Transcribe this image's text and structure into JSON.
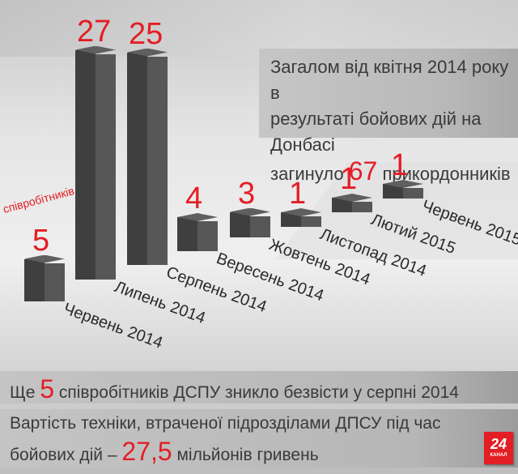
{
  "summary": {
    "line1": "Загалом від квітня 2014 року в",
    "line2": "результаті бойових дій на Донбасі",
    "line3_prefix": "загинуло",
    "line3_number": "67",
    "line3_suffix": "прикордонників"
  },
  "first_bar_unit": "співробітників",
  "missing": {
    "prefix": "Ще",
    "number": "5",
    "suffix": "співробітників ДСПУ зникло безвісти у серпні 2014"
  },
  "equipment": {
    "line1": "Вартість техніки, втраченої підрозділами ДПСУ під час",
    "line2_prefix": "бойових дій –",
    "line2_number": "27,5",
    "line2_suffix": "мільйонів гривень"
  },
  "logo": {
    "number": "24",
    "caption": "КАНАЛ"
  },
  "colors": {
    "accent": "#e31e24",
    "bar_front": "#3f3f3f",
    "bar_side": "#575757",
    "text": "#3a3a3a"
  },
  "chart_data": {
    "type": "bar",
    "title": "Загалом від квітня 2014 року в результаті бойових дій на Донбасі загинуло 67 прикордонників",
    "ylabel": "співробітників",
    "xlabel": "",
    "categories": [
      "Червень 2014",
      "Липень 2014",
      "Серпень 2014",
      "Вересень 2014",
      "Жовтень 2014",
      "Листопад 2014",
      "Лютий 2015",
      "Червень 2015"
    ],
    "values": [
      5,
      27,
      25,
      4,
      3,
      1,
      1,
      1
    ],
    "value_labels": [
      "5",
      "27",
      "25",
      "4",
      "3",
      "1",
      "1",
      "1"
    ],
    "grid": false,
    "legend": "none",
    "style": "3d-isometric"
  }
}
